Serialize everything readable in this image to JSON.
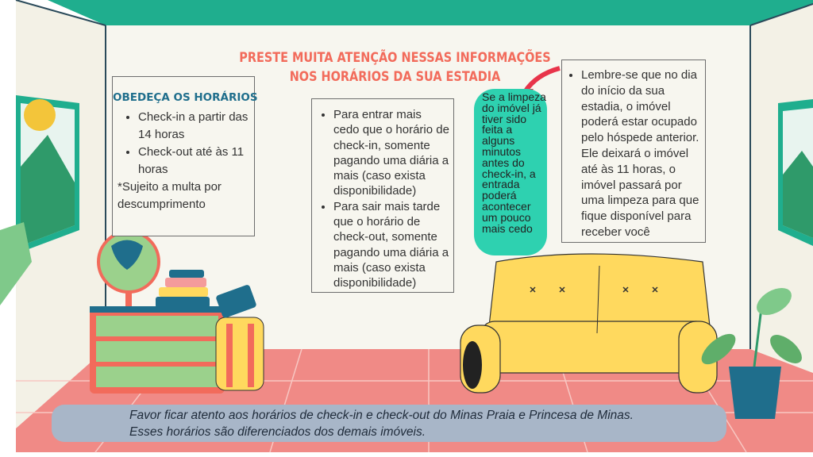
{
  "title": {
    "line1": "PRESTE MUITA ATENÇÃO NESSAS INFORMAÇÕES",
    "line2": "NOS HORÁRIOS DA SUA ESTADIA"
  },
  "schedule_box": {
    "heading": "OBEDEÇA OS HORÁRIOS",
    "items": [
      "Check-in a partir das 14 horas",
      "Check-out até às 11 horas"
    ],
    "note": "*Sujeito a multa por descumprimento"
  },
  "extra_box": {
    "items": [
      "Para entrar mais cedo que o horário de check-in, somente pagando uma diária a mais (caso exista disponibilidade)",
      "Para sair mais tarde que o horário de check-out, somente pagando uma diária a mais (caso exista disponibilidade)"
    ]
  },
  "callout": {
    "text": "Se a limpeza do imóvel já tiver sido feita a alguns minutos antes do check-in, a entrada poderá acontecer um pouco mais cedo"
  },
  "reminder_box": {
    "items": [
      "Lembre-se que no dia do início da sua estadia, o imóvel poderá estar ocupado pelo hóspede anterior. Ele deixará o imóvel até às 11 horas, o imóvel passará por uma limpeza para que fique disponível para receber você"
    ]
  },
  "banner": {
    "line1": "Favor ficar atento aos horários de check-in e check-out do Minas Praia e Princesa de Minas.",
    "line2": "Esses horários são diferenciados dos demais imóveis."
  },
  "colors": {
    "ceiling": "#1fae8e",
    "wall": "#f7f6ef",
    "floor": "#f08a86",
    "title": "#f26b5b",
    "heading": "#1f6e8c",
    "callout": "#2ed1b0",
    "banner": "#a8b6c8"
  }
}
